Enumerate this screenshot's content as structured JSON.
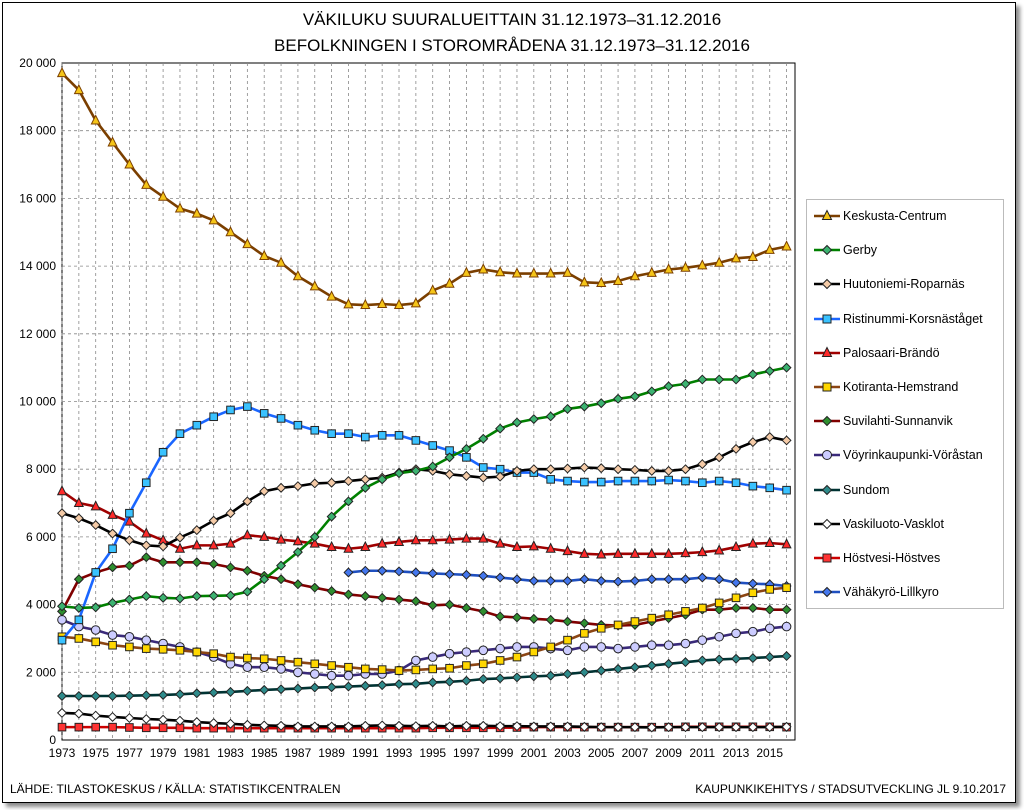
{
  "chart_data": {
    "type": "line",
    "title": "VÄKILUKU SUURALUEITTAIN 31.12.1973–31.12.2016",
    "subtitle": "BEFOLKNINGEN I STOROMRÅDENA 31.12.1973–31.12.2016",
    "source": "LÄHDE: TILASTOKESKUS / KÄLLA: STATISTIKCENTRALEN",
    "credit": "KAUPUNKIKEHITYS / STADSUTVECKLING JL 9.10.2017",
    "xlim": [
      1973,
      2016
    ],
    "ylim": [
      0,
      20000
    ],
    "x_tick_labels": [
      "1973",
      "1975",
      "1977",
      "1979",
      "1981",
      "1983",
      "1985",
      "1987",
      "1989",
      "1991",
      "1993",
      "1995",
      "1997",
      "1999",
      "2001",
      "2003",
      "2005",
      "2007",
      "2009",
      "2011",
      "2013",
      "2015"
    ],
    "y_tick_labels": [
      "0",
      "2 000",
      "4 000",
      "6 000",
      "8 000",
      "10 000",
      "12 000",
      "14 000",
      "16 000",
      "18 000",
      "20 000"
    ],
    "grid": true,
    "legend_position": "right",
    "x": [
      1973,
      1974,
      1975,
      1976,
      1977,
      1978,
      1979,
      1980,
      1981,
      1982,
      1983,
      1984,
      1985,
      1986,
      1987,
      1988,
      1989,
      1990,
      1991,
      1992,
      1993,
      1994,
      1995,
      1996,
      1997,
      1998,
      1999,
      2000,
      2001,
      2002,
      2003,
      2004,
      2005,
      2006,
      2007,
      2008,
      2009,
      2010,
      2011,
      2012,
      2013,
      2014,
      2015,
      2016
    ],
    "series": [
      {
        "name": "Keskusta-Centrum",
        "line": "#7b3f00",
        "fill": "#f5c518",
        "marker": "triangle",
        "values": [
          19700,
          19200,
          18300,
          17650,
          17000,
          16400,
          16050,
          15700,
          15550,
          15350,
          15000,
          14650,
          14300,
          14100,
          13700,
          13400,
          13100,
          12870,
          12850,
          12880,
          12850,
          12900,
          13280,
          13480,
          13800,
          13900,
          13820,
          13780,
          13780,
          13780,
          13800,
          13520,
          13500,
          13560,
          13700,
          13800,
          13900,
          13950,
          14020,
          14100,
          14230,
          14270,
          14480,
          14580
        ]
      },
      {
        "name": "Gerby",
        "line": "#008000",
        "fill": "#3cb371",
        "marker": "diamond",
        "values": [
          3950,
          3900,
          3920,
          4050,
          4150,
          4250,
          4200,
          4180,
          4250,
          4260,
          4270,
          4380,
          4750,
          5150,
          5550,
          6000,
          6600,
          7050,
          7450,
          7700,
          7880,
          7950,
          8080,
          8350,
          8600,
          8900,
          9200,
          9380,
          9480,
          9560,
          9780,
          9850,
          9950,
          10080,
          10150,
          10300,
          10450,
          10520,
          10650,
          10650,
          10650,
          10800,
          10900,
          11000
        ]
      },
      {
        "name": "Huutoniemi-Roparnäs",
        "line": "#000000",
        "fill": "#f5cba7",
        "marker": "diamond",
        "values": [
          6700,
          6550,
          6350,
          6100,
          5900,
          5750,
          5720,
          5980,
          6200,
          6480,
          6700,
          7050,
          7350,
          7450,
          7500,
          7580,
          7600,
          7650,
          7700,
          7750,
          7900,
          8000,
          7950,
          7850,
          7800,
          7750,
          7780,
          7950,
          8000,
          8000,
          8020,
          8050,
          8030,
          8000,
          7980,
          7950,
          7950,
          8000,
          8150,
          8350,
          8600,
          8800,
          8950,
          8850
        ]
      },
      {
        "name": "Ristinummi-Korsnäståget",
        "line": "#1a66ff",
        "fill": "#39c2ff",
        "marker": "square",
        "values": [
          2950,
          3550,
          4950,
          5650,
          6700,
          7600,
          8500,
          9050,
          9300,
          9550,
          9750,
          9850,
          9650,
          9500,
          9300,
          9150,
          9050,
          9050,
          8950,
          9000,
          9000,
          8850,
          8700,
          8550,
          8350,
          8050,
          8000,
          7900,
          7900,
          7700,
          7650,
          7620,
          7620,
          7650,
          7650,
          7650,
          7680,
          7650,
          7600,
          7650,
          7600,
          7500,
          7450,
          7380
        ]
      },
      {
        "name": "Palosaari-Brändö",
        "line": "#a00000",
        "fill": "#ff2a2a",
        "marker": "triangle",
        "values": [
          7350,
          7000,
          6900,
          6650,
          6450,
          6100,
          5900,
          5650,
          5750,
          5750,
          5800,
          6050,
          6000,
          5920,
          5870,
          5800,
          5700,
          5650,
          5700,
          5800,
          5850,
          5900,
          5900,
          5920,
          5950,
          5950,
          5800,
          5700,
          5720,
          5650,
          5580,
          5500,
          5480,
          5500,
          5500,
          5500,
          5500,
          5520,
          5550,
          5600,
          5700,
          5800,
          5820,
          5780
        ]
      },
      {
        "name": "Kotiranta-Hemstrand",
        "line": "#8b4513",
        "fill": "#ffd700",
        "marker": "square",
        "values": [
          3050,
          3000,
          2900,
          2800,
          2750,
          2700,
          2680,
          2650,
          2600,
          2550,
          2450,
          2420,
          2400,
          2350,
          2300,
          2250,
          2200,
          2150,
          2100,
          2080,
          2050,
          2070,
          2100,
          2120,
          2200,
          2250,
          2350,
          2450,
          2600,
          2750,
          2950,
          3150,
          3300,
          3400,
          3500,
          3600,
          3700,
          3800,
          3900,
          4050,
          4200,
          4350,
          4450,
          4500
        ]
      },
      {
        "name": "Suvilahti-Sunnanvik",
        "line": "#800000",
        "fill": "#2f8f2f",
        "marker": "diamond",
        "values": [
          3800,
          4750,
          4950,
          5100,
          5150,
          5400,
          5250,
          5250,
          5250,
          5200,
          5100,
          5000,
          4850,
          4750,
          4600,
          4500,
          4400,
          4300,
          4250,
          4200,
          4150,
          4100,
          3980,
          4000,
          3900,
          3800,
          3650,
          3620,
          3580,
          3550,
          3500,
          3450,
          3400,
          3380,
          3400,
          3500,
          3600,
          3700,
          3850,
          3850,
          3900,
          3900,
          3850,
          3850
        ]
      },
      {
        "name": "Vöyrinkaupunki-Vöråstan",
        "line": "#3a2a7a",
        "fill": "#ccccff",
        "marker": "circle",
        "values": [
          3550,
          3350,
          3250,
          3100,
          3050,
          2950,
          2850,
          2750,
          2600,
          2450,
          2250,
          2150,
          2150,
          2100,
          2000,
          1950,
          1900,
          1900,
          1950,
          1950,
          2050,
          2350,
          2450,
          2550,
          2600,
          2650,
          2700,
          2750,
          2750,
          2700,
          2650,
          2750,
          2750,
          2700,
          2750,
          2800,
          2800,
          2850,
          2950,
          3050,
          3150,
          3200,
          3300,
          3350
        ]
      },
      {
        "name": "Sundom",
        "line": "#003333",
        "fill": "#2e8b8b",
        "marker": "diamond",
        "values": [
          1300,
          1300,
          1300,
          1300,
          1310,
          1320,
          1330,
          1350,
          1380,
          1400,
          1420,
          1450,
          1480,
          1500,
          1520,
          1550,
          1560,
          1580,
          1600,
          1620,
          1650,
          1660,
          1700,
          1720,
          1750,
          1800,
          1820,
          1850,
          1880,
          1900,
          1950,
          2000,
          2050,
          2100,
          2150,
          2200,
          2250,
          2300,
          2350,
          2380,
          2400,
          2420,
          2450,
          2480
        ]
      },
      {
        "name": "Vaskiluoto-Vasklot",
        "line": "#000000",
        "fill": "#ffffff",
        "marker": "diamond",
        "values": [
          800,
          780,
          720,
          680,
          650,
          620,
          600,
          570,
          530,
          500,
          480,
          450,
          430,
          420,
          400,
          400,
          400,
          400,
          420,
          430,
          420,
          410,
          420,
          400,
          420,
          420,
          410,
          410,
          400,
          400,
          400,
          390,
          380,
          380,
          380,
          370,
          380,
          380,
          380,
          380,
          380,
          380,
          380,
          390
        ]
      },
      {
        "name": "Höstvesi-Höstves",
        "line": "#cc0000",
        "fill": "#ff3333",
        "marker": "square",
        "values": [
          380,
          380,
          380,
          380,
          370,
          360,
          360,
          360,
          350,
          350,
          350,
          350,
          350,
          350,
          350,
          350,
          350,
          350,
          350,
          350,
          350,
          350,
          360,
          360,
          360,
          360,
          360,
          370,
          380,
          380,
          380,
          380,
          380,
          380,
          380,
          380,
          380,
          390,
          390,
          390,
          390,
          390,
          390,
          380
        ]
      },
      {
        "name": "Vähäkyrö-Lillkyro",
        "line": "#1f4fbf",
        "fill": "#4477ee",
        "marker": "diamond",
        "values": [
          null,
          null,
          null,
          null,
          null,
          null,
          null,
          null,
          null,
          null,
          null,
          null,
          null,
          null,
          null,
          null,
          null,
          4950,
          5000,
          5000,
          4980,
          4950,
          4920,
          4900,
          4880,
          4850,
          4800,
          4750,
          4700,
          4700,
          4700,
          4750,
          4700,
          4680,
          4700,
          4750,
          4750,
          4750,
          4800,
          4750,
          4650,
          4620,
          4600,
          4550
        ]
      }
    ]
  }
}
